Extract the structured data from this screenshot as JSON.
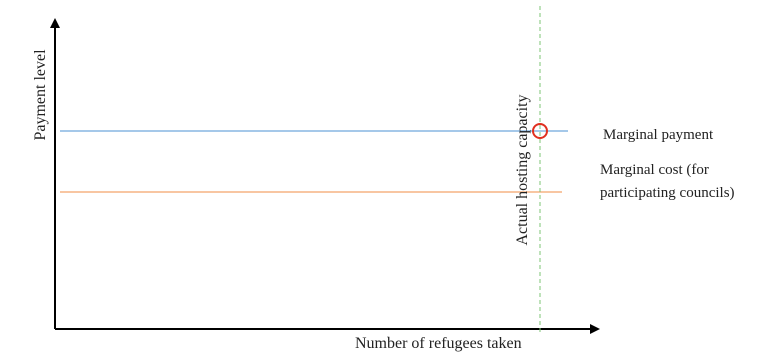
{
  "axes": {
    "y_label": "Payment level",
    "x_label": "Number of refugees taken"
  },
  "lines": {
    "capacity_label": "Actual hosting capacity",
    "marginal_payment_label": "Marginal payment",
    "marginal_cost_label": "Marginal cost (for participating councils)"
  },
  "colors": {
    "axis": "#000000",
    "marginal_payment": "#6fa8dc",
    "marginal_cost": "#f4a36a",
    "capacity": "#7cc576",
    "marker": "#e03020"
  }
}
